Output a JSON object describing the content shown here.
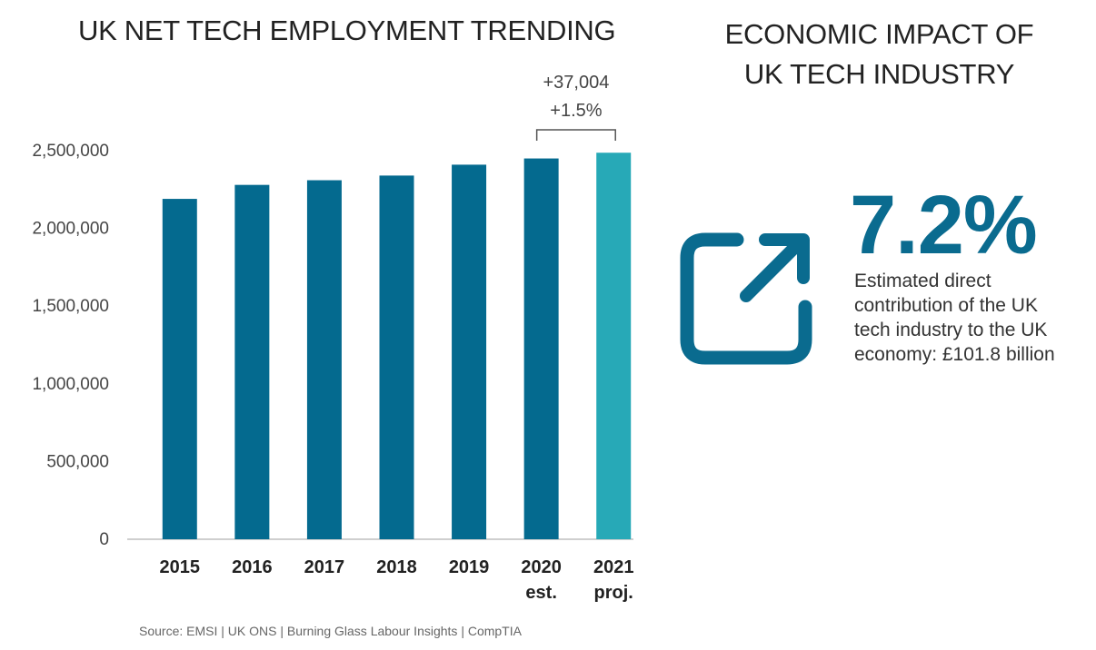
{
  "left_title": "UK NET TECH EMPLOYMENT TRENDING",
  "right_title_line1": "ECONOMIC IMPACT OF",
  "right_title_line2": "UK TECH INDUSTRY",
  "chart_data": {
    "type": "bar",
    "title": "UK NET TECH EMPLOYMENT TRENDING",
    "categories": [
      "2015",
      "2016",
      "2017",
      "2018",
      "2019",
      "2020",
      "2021"
    ],
    "category_sublabels": [
      "",
      "",
      "",
      "",
      "",
      "est.",
      "proj."
    ],
    "values": [
      2190000,
      2280000,
      2310000,
      2340000,
      2410000,
      2450000,
      2487000
    ],
    "bar_colors": [
      "#046a8f",
      "#046a8f",
      "#046a8f",
      "#046a8f",
      "#046a8f",
      "#046a8f",
      "#27a9b7"
    ],
    "ylim": [
      0,
      2500000
    ],
    "yticks": [
      0,
      500000,
      1000000,
      1500000,
      2000000,
      2500000
    ],
    "ytick_labels": [
      "0",
      "500,000",
      "1,000,000",
      "1,500,000",
      "2,000,000",
      "2,500,000"
    ],
    "xlabel": "",
    "ylabel": "",
    "grid": false,
    "annotation": {
      "line1": "+37,004",
      "line2": "+1.5%",
      "from_category": "2020",
      "to_category": "2021"
    }
  },
  "stat": {
    "value": "7.2%",
    "description": "Estimated direct contribution of the UK tech industry to the UK economy: £101.8 billion",
    "icon": "external-link-icon",
    "color": "#0a6b8f"
  },
  "source": "Source: EMSI | UK ONS | Burning Glass Labour Insights | CompTIA"
}
